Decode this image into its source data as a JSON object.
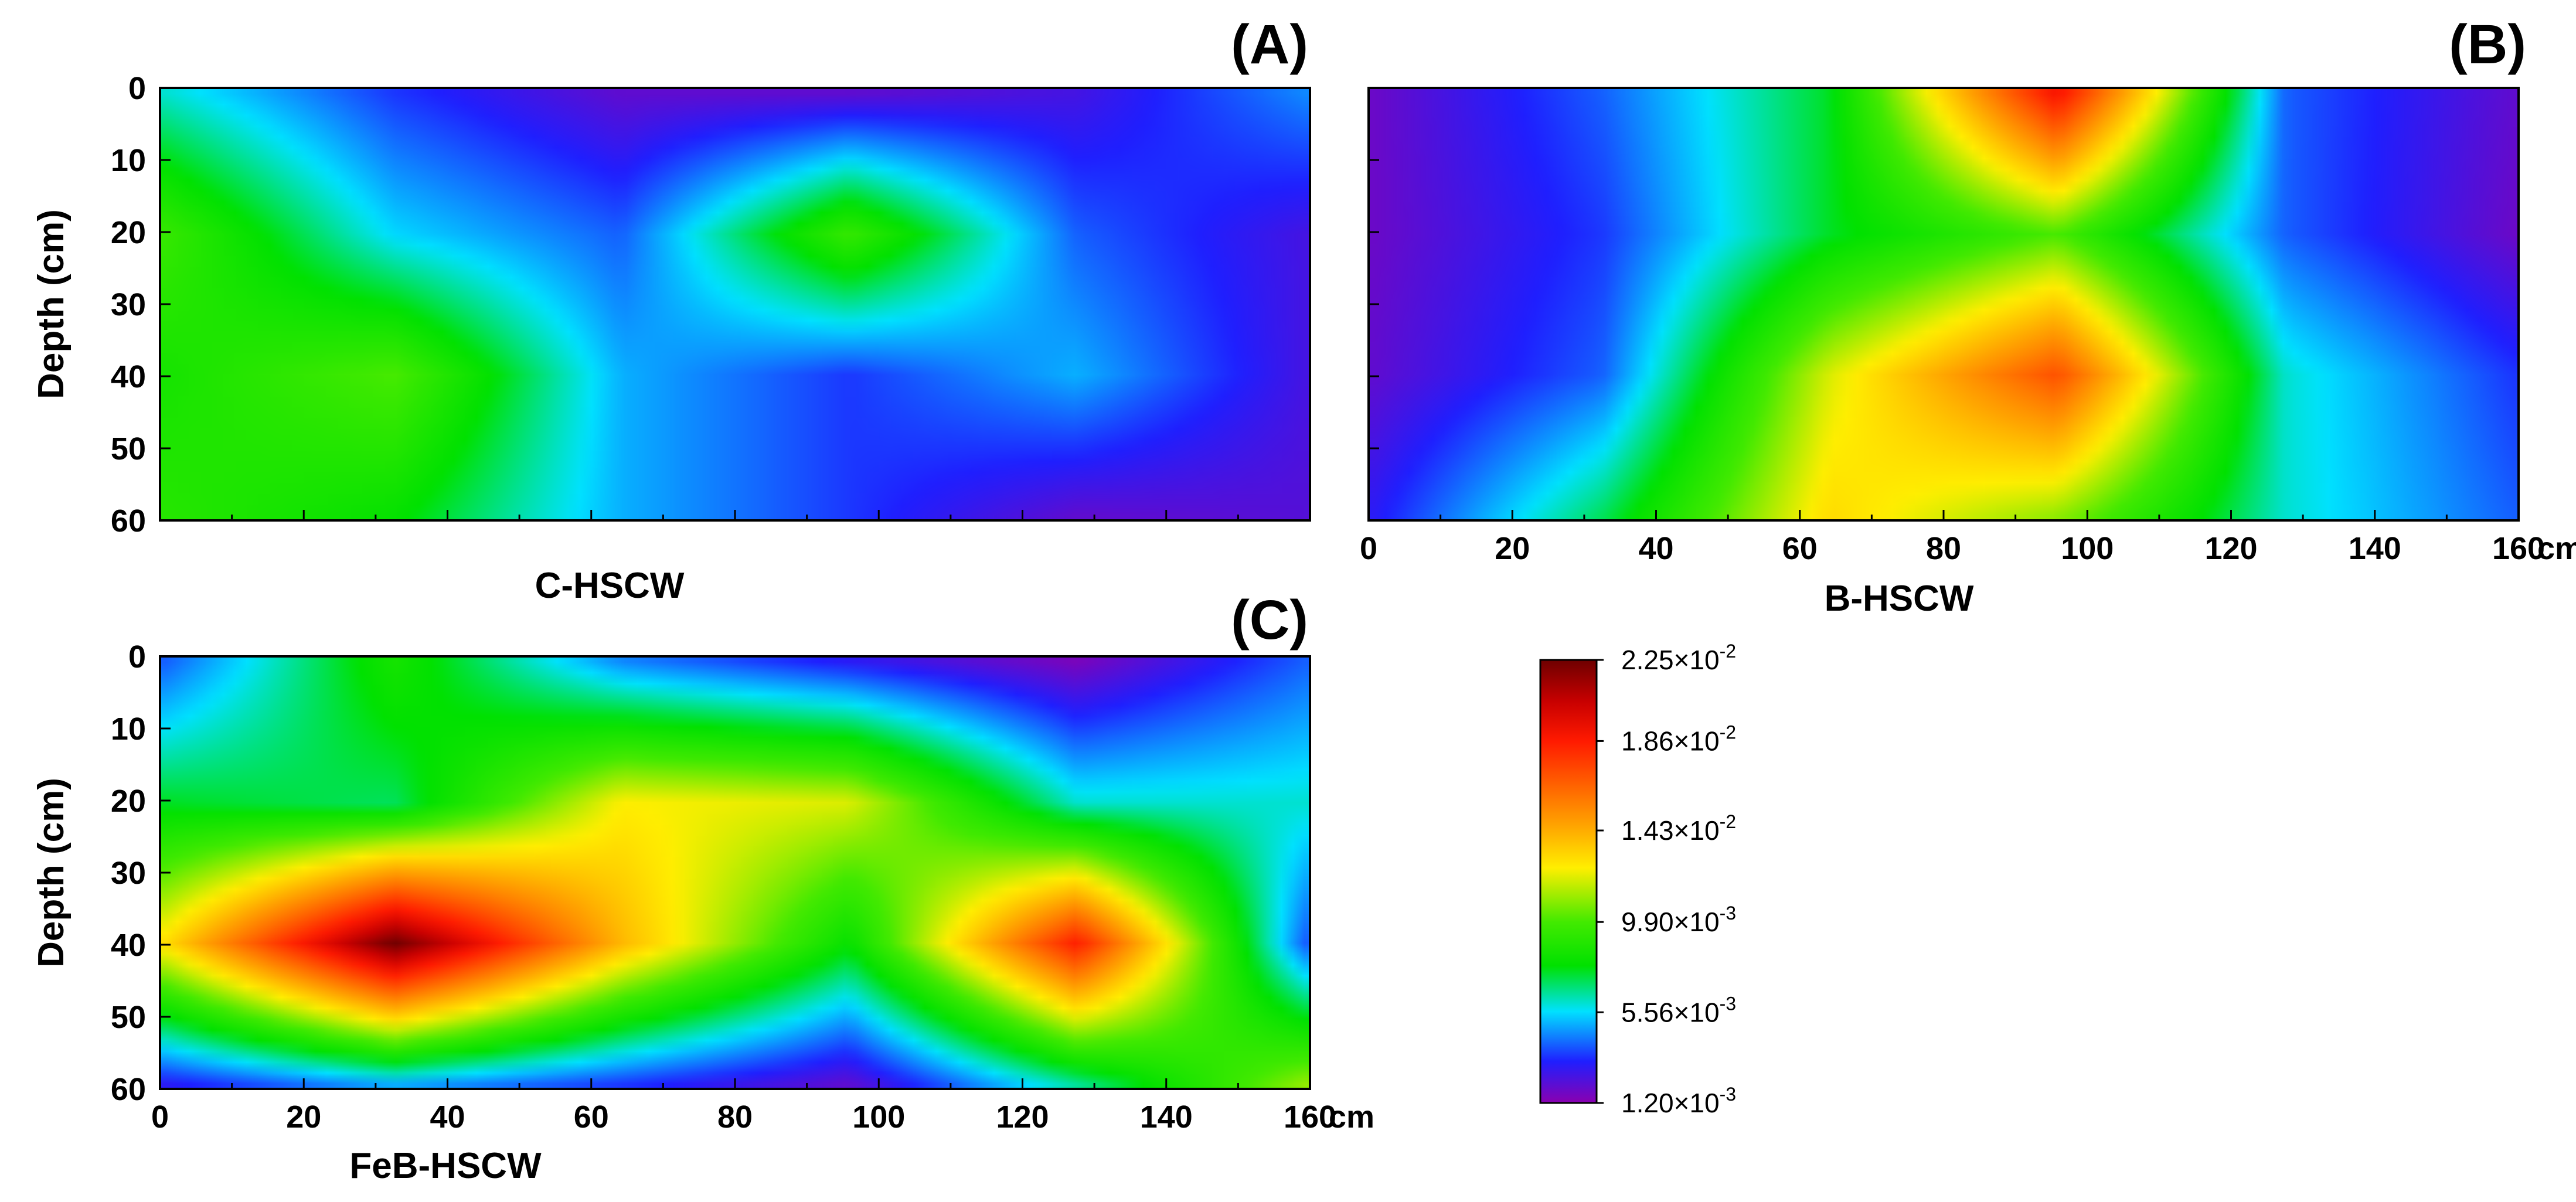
{
  "chart_data": [
    {
      "type": "heatmap",
      "panel": "A",
      "panel_label": "(A)",
      "name": "C-HSCW",
      "xlabel": "C-HSCW",
      "ylabel": "Depth (cm)",
      "x_unit": "cm",
      "x_ticks": [],
      "y_ticks": [
        "0",
        "10",
        "20",
        "30",
        "40",
        "50",
        "60"
      ],
      "xlim": [
        0,
        160
      ],
      "ylim": [
        60,
        0
      ],
      "x": [
        0,
        32,
        64,
        96,
        128,
        160
      ],
      "y": [
        0,
        20,
        40,
        60
      ],
      "z": [
        [
          0.006,
          0.0035,
          0.002,
          0.002,
          0.0025,
          0.0045
        ],
        [
          0.0095,
          0.0055,
          0.004,
          0.0095,
          0.004,
          0.0025
        ],
        [
          0.0085,
          0.01,
          0.005,
          0.0035,
          0.005,
          0.0025
        ],
        [
          0.009,
          0.008,
          0.005,
          0.0035,
          0.002,
          0.0022
        ]
      ]
    },
    {
      "type": "heatmap",
      "panel": "B",
      "panel_label": "(B)",
      "name": "B-HSCW",
      "xlabel": "B-HSCW",
      "ylabel": "",
      "x_unit": "cm",
      "x_ticks": [
        "0",
        "20",
        "40",
        "60",
        "80",
        "100",
        "120",
        "140",
        "160"
      ],
      "y_ticks": [],
      "xlim": [
        0,
        160
      ],
      "ylim": [
        60,
        0
      ],
      "x": [
        0,
        32,
        64,
        96,
        128,
        160
      ],
      "y": [
        0,
        20,
        40,
        60
      ],
      "z": [
        [
          0.0018,
          0.004,
          0.0075,
          0.019,
          0.004,
          0.002
        ],
        [
          0.0018,
          0.0035,
          0.0075,
          0.01,
          0.004,
          0.0018
        ],
        [
          0.002,
          0.004,
          0.012,
          0.017,
          0.006,
          0.0035
        ],
        [
          0.003,
          0.007,
          0.013,
          0.011,
          0.006,
          0.004
        ]
      ]
    },
    {
      "type": "heatmap",
      "panel": "C",
      "panel_label": "(C)",
      "name": "FeB-HSCW",
      "xlabel": "FeB-HSCW",
      "ylabel": "Depth (cm)",
      "x_unit": "cm",
      "x_ticks": [
        "0",
        "20",
        "40",
        "60",
        "80",
        "100",
        "120",
        "140",
        "160"
      ],
      "y_ticks": [
        "0",
        "10",
        "20",
        "30",
        "40",
        "50",
        "60"
      ],
      "xlim": [
        0,
        160
      ],
      "ylim": [
        60,
        0
      ],
      "x": [
        0,
        32,
        64,
        96,
        128,
        160
      ],
      "y": [
        0,
        20,
        40,
        60
      ],
      "z": [
        [
          0.004,
          0.0085,
          0.0045,
          0.003,
          0.0015,
          0.004
        ],
        [
          0.0075,
          0.007,
          0.0125,
          0.012,
          0.006,
          0.006
        ],
        [
          0.013,
          0.0225,
          0.014,
          0.008,
          0.0185,
          0.004
        ],
        [
          0.003,
          0.005,
          0.0035,
          0.002,
          0.0065,
          0.011
        ]
      ]
    }
  ],
  "colorbar": {
    "min": 0.0012,
    "max": 0.0225,
    "tick_values": [
      0.0225,
      0.0186,
      0.0143,
      0.0099,
      0.00556,
      0.0012
    ],
    "tick_labels": [
      {
        "mantissa": "2.25",
        "times": "×10",
        "exp": "-2"
      },
      {
        "mantissa": "1.86",
        "times": "×10",
        "exp": "-2"
      },
      {
        "mantissa": "1.43",
        "times": "×10",
        "exp": "-2"
      },
      {
        "mantissa": "9.90",
        "times": "×10",
        "exp": "-3"
      },
      {
        "mantissa": "5.56",
        "times": "×10",
        "exp": "-3"
      },
      {
        "mantissa": "1.20",
        "times": "×10",
        "exp": "-3"
      }
    ],
    "stops": [
      {
        "value": 0.0012,
        "color": "#8a00b0"
      },
      {
        "value": 0.0032,
        "color": "#1f1fff"
      },
      {
        "value": 0.0056,
        "color": "#00e1ff"
      },
      {
        "value": 0.0078,
        "color": "#00e100"
      },
      {
        "value": 0.0099,
        "color": "#42ea00"
      },
      {
        "value": 0.0125,
        "color": "#ffee00"
      },
      {
        "value": 0.0145,
        "color": "#ffa500"
      },
      {
        "value": 0.0186,
        "color": "#ff1a00"
      },
      {
        "value": 0.0205,
        "color": "#c80000"
      },
      {
        "value": 0.0225,
        "color": "#6e0000"
      }
    ]
  }
}
